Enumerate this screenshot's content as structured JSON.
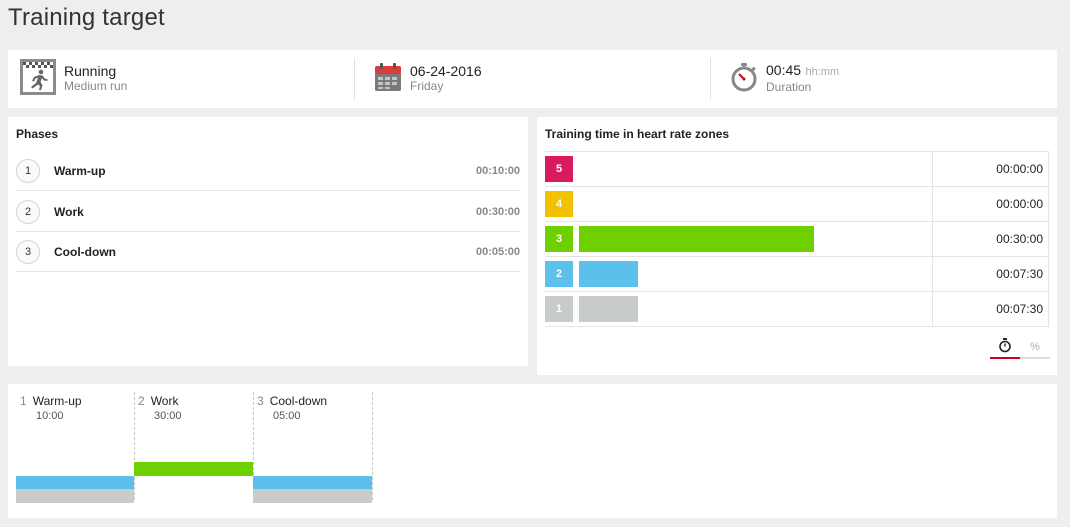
{
  "page": {
    "title": "Training target"
  },
  "summary": {
    "sport": {
      "name": "Running",
      "type": "Medium run",
      "icon": "running-icon"
    },
    "date": {
      "value": "06-24-2016",
      "weekday": "Friday",
      "icon": "calendar-icon"
    },
    "duration": {
      "value": "00:45",
      "unit": "hh:mm",
      "label": "Duration",
      "icon": "stopwatch-icon"
    }
  },
  "phases": {
    "title": "Phases",
    "items": [
      {
        "num": "1",
        "name": "Warm-up",
        "duration": "00:10:00"
      },
      {
        "num": "2",
        "name": "Work",
        "duration": "00:30:00"
      },
      {
        "num": "3",
        "name": "Cool-down",
        "duration": "00:05:00"
      }
    ]
  },
  "zones": {
    "title": "Training time in heart rate zones",
    "items": [
      {
        "zone": "5",
        "time": "00:00:00",
        "fraction": 0.0,
        "color": "#d81b60"
      },
      {
        "zone": "4",
        "time": "00:00:00",
        "fraction": 0.0,
        "color": "#f2c200"
      },
      {
        "zone": "3",
        "time": "00:30:00",
        "fraction": 0.667,
        "color": "#6fd000"
      },
      {
        "zone": "2",
        "time": "00:07:30",
        "fraction": 0.167,
        "color": "#5bc0eb"
      },
      {
        "zone": "1",
        "time": "00:07:30",
        "fraction": 0.167,
        "color": "#c8cccc"
      }
    ],
    "toggle": {
      "time_icon": "stopwatch-icon",
      "percent_label": "%",
      "active": "time",
      "active_color": "#d0021b"
    }
  },
  "timeline": {
    "phases": [
      {
        "num": "1",
        "name": "Warm-up",
        "duration": "10:00",
        "zones": [
          "2",
          "1"
        ]
      },
      {
        "num": "2",
        "name": "Work",
        "duration": "30:00",
        "zones": [
          "3"
        ]
      },
      {
        "num": "3",
        "name": "Cool-down",
        "duration": "05:00",
        "zones": [
          "2",
          "1"
        ]
      }
    ]
  }
}
